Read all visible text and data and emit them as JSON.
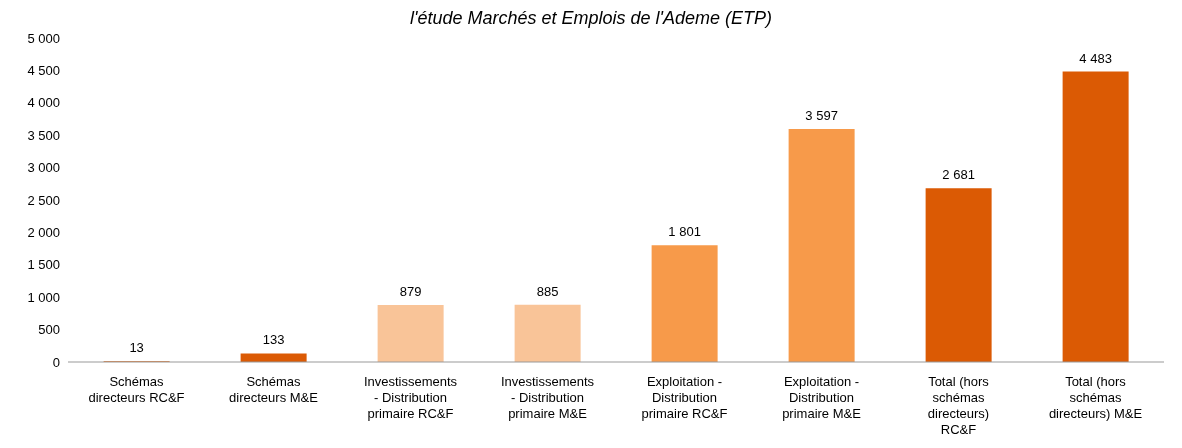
{
  "chart_data": {
    "type": "bar",
    "title": "l'étude Marchés et Emplois de l'Ademe (ETP)",
    "categories": [
      "Schémas directeurs RC&F",
      "Schémas directeurs M&E",
      "Investissements - Distribution primaire RC&F",
      "Investissements - Distribution primaire M&E",
      "Exploitation - Distribution primaire RC&F",
      "Exploitation - Distribution primaire M&E",
      "Total (hors schémas directeurs) RC&F",
      "Total (hors schémas directeurs) M&E"
    ],
    "values": [
      13,
      133,
      879,
      885,
      1801,
      3597,
      2681,
      4483
    ],
    "colors": [
      "#db5a04",
      "#db5a04",
      "#f9c498",
      "#f9c498",
      "#f79a4a",
      "#f79a4a",
      "#db5a04",
      "#db5a04"
    ],
    "value_labels": [
      "13",
      "133",
      "879",
      "885",
      "1 801",
      "3 597",
      "2 681",
      "4 483"
    ],
    "ylim": [
      0,
      5000
    ],
    "yticks": [
      0,
      {
        "value": 500,
        "label": "500"
      },
      {
        "value": 1000,
        "label": "1 000"
      },
      {
        "value": 1500,
        "label": "1 500"
      },
      {
        "value": 2000,
        "label": "2 000"
      },
      {
        "value": 2500,
        "label": "2 500"
      },
      {
        "value": 3000,
        "label": "3 000"
      },
      {
        "value": 3500,
        "label": "3 500"
      },
      {
        "value": 4000,
        "label": "4 000"
      },
      {
        "value": 4500,
        "label": "4 500"
      },
      {
        "value": 5000,
        "label": "5 000"
      }
    ],
    "grid": false
  }
}
